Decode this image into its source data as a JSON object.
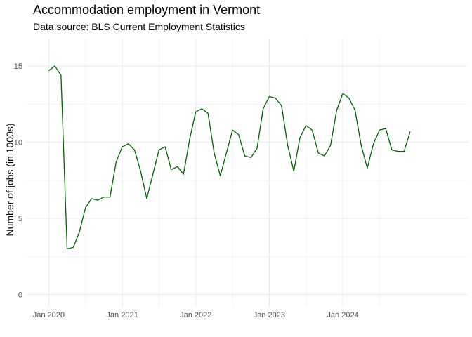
{
  "chart_data": {
    "type": "line",
    "title": "Accommodation employment in Vermont",
    "subtitle": "Data source: BLS Current Employment Statistics",
    "xlabel": "",
    "ylabel": "Number of jobs (in 1000s)",
    "ylim": [
      -0.8,
      16.8
    ],
    "yticks": [
      0,
      5,
      10,
      15
    ],
    "ytick_labels": [
      "0",
      "5",
      "10",
      "15"
    ],
    "xlim_months": [
      -3.6,
      68.4
    ],
    "xtick_positions": [
      0,
      12,
      24,
      36,
      48
    ],
    "xtick_labels": [
      "Jan 2020",
      "Jan 2021",
      "Jan 2022",
      "Jan 2023",
      "Jan 2024"
    ],
    "grid": true,
    "line_color": "#006400",
    "series": [
      {
        "name": "Accommodation employment",
        "start": "Jan 2020",
        "values": [
          14.7,
          15.0,
          14.4,
          3.0,
          3.1,
          4.1,
          5.7,
          6.3,
          6.2,
          6.4,
          6.4,
          8.7,
          9.7,
          9.9,
          9.5,
          8.1,
          6.3,
          7.9,
          9.5,
          9.7,
          8.2,
          8.4,
          7.9,
          10.2,
          12.0,
          12.2,
          11.9,
          9.3,
          7.8,
          9.3,
          10.8,
          10.5,
          9.1,
          9.0,
          9.6,
          12.2,
          13.0,
          12.9,
          12.4,
          9.8,
          8.1,
          10.3,
          11.1,
          10.8,
          9.3,
          9.1,
          9.8,
          12.1,
          13.2,
          12.9,
          12.1,
          9.8,
          8.3,
          9.9,
          10.8,
          10.9,
          9.5,
          9.4,
          9.4,
          10.7
        ]
      }
    ]
  }
}
